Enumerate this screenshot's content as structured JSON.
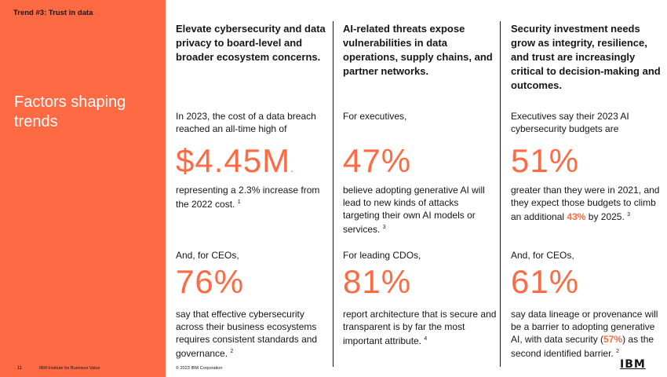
{
  "sidebar": {
    "tag": "Trend #3: Trust in data",
    "title": "Factors shaping trends",
    "page_number": "11",
    "publisher": "IBM Institute for Business Value",
    "copyright": "© 2023 IBM Corporation",
    "background_color": "#fe6a43"
  },
  "columns": [
    {
      "heading": "Elevate cybersecurity and data privacy to board-level and broader ecosystem concerns.",
      "stat1": {
        "intro": "In 2023, the cost of a data breach reached an all-time high of",
        "value": "$4.45M",
        "after_value": ".",
        "description": "representing a 2.3% increase from the 2022 cost.",
        "footnote": "1"
      },
      "stat2": {
        "intro": "And, for CEOs,",
        "value": "76%",
        "description": "say that effective cybersecurity across their business ecosystems requires consistent standards and governance.",
        "footnote": "2"
      }
    },
    {
      "heading": "AI-related threats expose vulnerabilities in data operations, supply chains, and partner networks.",
      "stat1": {
        "intro": "For executives,",
        "value": "47%",
        "description": "believe adopting generative AI will lead to new kinds of attacks targeting their own AI models or services.",
        "footnote": "3"
      },
      "stat2": {
        "intro": "For leading CDOs,",
        "value": "81%",
        "description": "report architecture that is secure and transparent is by far the most important attribute.",
        "footnote": "4"
      }
    },
    {
      "heading": "Security investment needs grow as integrity, resilience, and trust are increasingly critical to decision-making and outcomes.",
      "stat1": {
        "intro": "Executives say their 2023 AI cybersecurity budgets are",
        "value": "51%",
        "description_a": "greater than they were in 2021, and they expect those budgets to climb an additional",
        "highlight": "43%",
        "description_b": "by 2025.",
        "footnote": "3"
      },
      "stat2": {
        "intro": "And, for CEOs,",
        "value": "61%",
        "description_a": "say data lineage or provenance will be a barrier to adopting generative AI, with data security (",
        "highlight": "57%",
        "description_b": ") as the second identified barrier.",
        "footnote": "2"
      }
    }
  ],
  "logo": "IBM",
  "accent_color": "#fe6a43"
}
